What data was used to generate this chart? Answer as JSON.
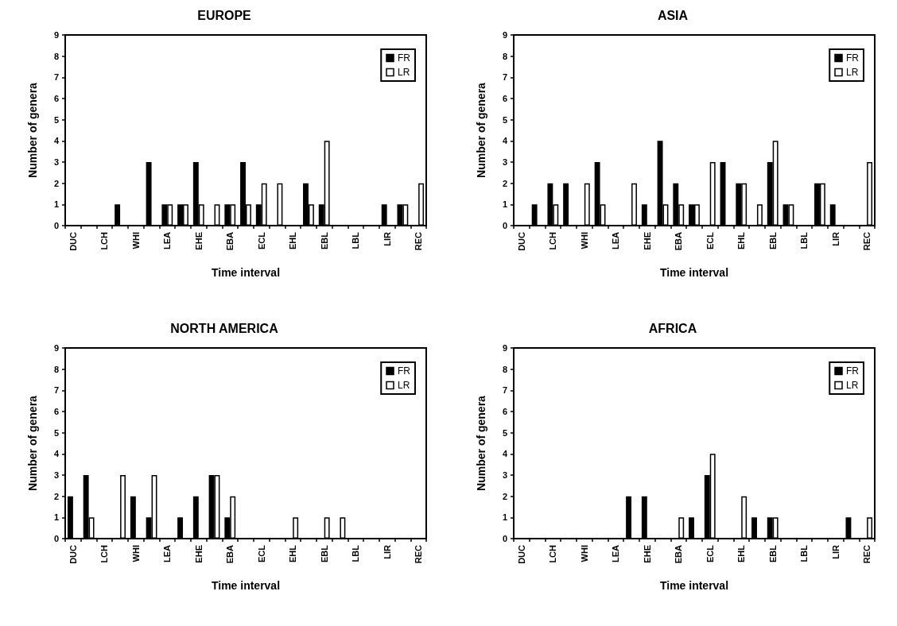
{
  "chart_data": [
    {
      "type": "bar",
      "title": "EUROPE",
      "xlabel": "Time interval",
      "ylabel": "Number of genera",
      "categories": [
        "DUC",
        null,
        "LCH",
        null,
        "WHI",
        null,
        "LEA",
        null,
        "EHE",
        null,
        "EBA",
        null,
        "ECL",
        null,
        "EHL",
        null,
        "EBL",
        null,
        "LBL",
        null,
        "LIR",
        null,
        "REC"
      ],
      "ylim": [
        0,
        9
      ],
      "yticks": [
        0,
        1,
        2,
        3,
        4,
        5,
        6,
        7,
        8,
        9
      ],
      "grid": false,
      "legend": "top right",
      "series": [
        {
          "name": "FR",
          "color": "#000000",
          "values": [
            0,
            0,
            0,
            1,
            0,
            3,
            1,
            1,
            3,
            0,
            1,
            3,
            1,
            0,
            0,
            2,
            1,
            0,
            0,
            0,
            1,
            1,
            0
          ]
        },
        {
          "name": "LR",
          "color": "#ffffff",
          "values": [
            0,
            0,
            0,
            0,
            0,
            0,
            1,
            1,
            1,
            1,
            1,
            1,
            2,
            2,
            0,
            1,
            4,
            0,
            0,
            0,
            0,
            1,
            2
          ]
        }
      ]
    },
    {
      "type": "bar",
      "title": "ASIA",
      "xlabel": "Time interval",
      "ylabel": "Number of genera",
      "categories": [
        "DUC",
        null,
        "LCH",
        null,
        "WHI",
        null,
        "LEA",
        null,
        "EHE",
        null,
        "EBA",
        null,
        "ECL",
        null,
        "EHL",
        null,
        "EBL",
        null,
        "LBL",
        null,
        "LIR",
        null,
        "REC"
      ],
      "ylim": [
        0,
        9
      ],
      "yticks": [
        0,
        1,
        2,
        3,
        4,
        5,
        6,
        7,
        8,
        9
      ],
      "grid": false,
      "legend": "top right",
      "series": [
        {
          "name": "FR",
          "color": "#000000",
          "values": [
            0,
            1,
            2,
            2,
            0,
            3,
            0,
            0,
            1,
            4,
            2,
            1,
            0,
            3,
            2,
            0,
            3,
            1,
            0,
            2,
            1,
            0,
            0
          ]
        },
        {
          "name": "LR",
          "color": "#ffffff",
          "values": [
            0,
            0,
            1,
            0,
            2,
            1,
            0,
            2,
            0,
            1,
            1,
            1,
            3,
            0,
            2,
            1,
            4,
            1,
            0,
            2,
            0,
            0,
            3
          ]
        }
      ]
    },
    {
      "type": "bar",
      "title": "NORTH AMERICA",
      "xlabel": "Time interval",
      "ylabel": "Number of genera",
      "categories": [
        "DUC",
        null,
        "LCH",
        null,
        "WHI",
        null,
        "LEA",
        null,
        "EHE",
        null,
        "EBA",
        null,
        "ECL",
        null,
        "EHL",
        null,
        "EBL",
        null,
        "LBL",
        null,
        "LIR",
        null,
        "REC"
      ],
      "ylim": [
        0,
        9
      ],
      "yticks": [
        0,
        1,
        2,
        3,
        4,
        5,
        6,
        7,
        8,
        9
      ],
      "grid": false,
      "legend": "top right",
      "series": [
        {
          "name": "FR",
          "color": "#000000",
          "values": [
            2,
            3,
            0,
            0,
            2,
            1,
            0,
            1,
            2,
            3,
            1,
            0,
            0,
            0,
            0,
            0,
            0,
            0,
            0,
            0,
            0,
            0,
            0
          ]
        },
        {
          "name": "LR",
          "color": "#ffffff",
          "values": [
            0,
            1,
            0,
            3,
            0,
            3,
            0,
            0,
            0,
            3,
            2,
            0,
            0,
            0,
            1,
            0,
            1,
            1,
            0,
            0,
            0,
            0,
            0
          ]
        }
      ]
    },
    {
      "type": "bar",
      "title": "AFRICA",
      "xlabel": "Time interval",
      "ylabel": "Number of genera",
      "categories": [
        "DUC",
        null,
        "LCH",
        null,
        "WHI",
        null,
        "LEA",
        null,
        "EHE",
        null,
        "EBA",
        null,
        "ECL",
        null,
        "EHL",
        null,
        "EBL",
        null,
        "LBL",
        null,
        "LIR",
        null,
        "REC"
      ],
      "ylim": [
        0,
        9
      ],
      "yticks": [
        0,
        1,
        2,
        3,
        4,
        5,
        6,
        7,
        8,
        9
      ],
      "grid": false,
      "legend": "top right",
      "series": [
        {
          "name": "FR",
          "color": "#000000",
          "values": [
            0,
            0,
            0,
            0,
            0,
            0,
            0,
            2,
            2,
            0,
            0,
            1,
            3,
            0,
            0,
            1,
            1,
            0,
            0,
            0,
            0,
            1,
            0
          ]
        },
        {
          "name": "LR",
          "color": "#ffffff",
          "values": [
            0,
            0,
            0,
            0,
            0,
            0,
            0,
            0,
            0,
            0,
            1,
            0,
            4,
            0,
            2,
            0,
            1,
            0,
            0,
            0,
            0,
            0,
            1
          ]
        }
      ]
    }
  ]
}
